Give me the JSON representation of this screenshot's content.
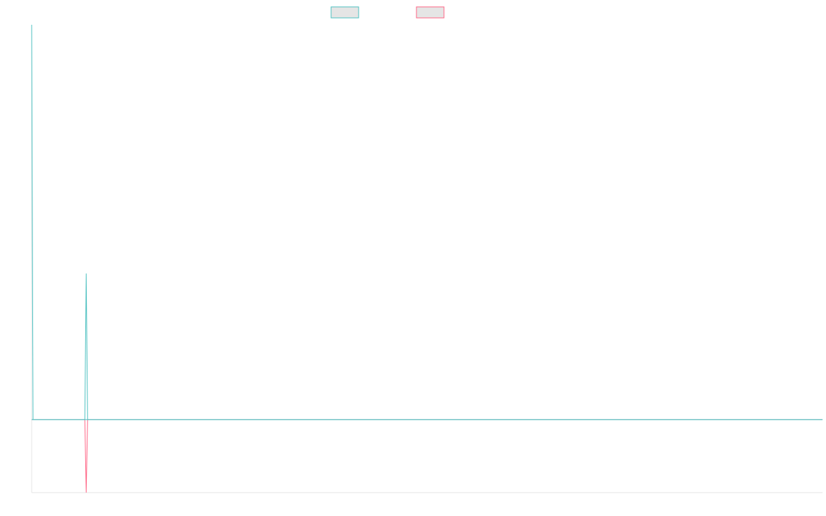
{
  "chart_data": {
    "type": "line",
    "title": "",
    "xlabel": "",
    "ylabel": "",
    "grid": false,
    "legend": {
      "placement": "top-center",
      "show_labels": false
    },
    "x": [
      0,
      1,
      2,
      3,
      4,
      5,
      6,
      7,
      8,
      9,
      10,
      11,
      12,
      13,
      14,
      15,
      16,
      17,
      18,
      19,
      20,
      21,
      22,
      23,
      24,
      25,
      26,
      27,
      28,
      29,
      30,
      31,
      32,
      33,
      34,
      35,
      36,
      37,
      38,
      39,
      40,
      41,
      42,
      43,
      44,
      45,
      46,
      47,
      48,
      49,
      50,
      51,
      52,
      53,
      54,
      55,
      56,
      57,
      58
    ],
    "xlim": [
      0,
      58
    ],
    "ylim": [
      -0.185,
      1.0
    ],
    "series": [
      {
        "key": "teal",
        "color": "#4bc0c0",
        "fill": "#e5e5e5",
        "values": [
          1.0,
          0,
          0,
          0,
          0,
          0,
          0,
          0,
          0,
          0,
          0,
          0,
          0,
          0,
          0,
          0,
          0,
          0,
          0,
          0,
          0,
          0,
          0,
          0,
          0,
          0,
          0,
          0,
          0,
          0,
          0,
          0,
          0,
          0,
          0,
          0,
          0,
          0,
          0,
          0,
          0,
          0,
          0,
          0,
          0,
          0,
          0,
          0,
          0,
          0,
          0,
          0,
          0,
          0,
          0,
          0,
          0,
          0,
          0
        ]
      },
      {
        "key": "pink",
        "color": "#ff6384",
        "fill": "#e5e5e5",
        "values": [
          0,
          0,
          0,
          0,
          -0.185,
          0,
          0,
          0,
          0,
          0,
          0,
          0,
          0,
          0,
          0,
          0,
          0,
          0,
          0,
          0,
          0,
          0,
          0,
          0,
          0,
          0,
          0,
          0,
          0,
          0,
          0,
          0,
          0,
          0,
          0,
          0,
          0,
          0,
          0,
          0,
          0,
          0,
          0,
          0,
          0,
          0,
          0,
          0,
          0,
          0,
          0,
          0,
          0,
          0,
          0,
          0,
          0,
          0,
          0
        ]
      },
      {
        "key": "teal-spike",
        "color": "#4bc0c0",
        "fill": "#e5e5e5",
        "values": [
          0,
          0,
          0,
          0,
          0.37,
          0,
          0,
          0,
          0,
          0,
          0,
          0,
          0,
          0,
          0,
          0,
          0,
          0,
          0,
          0,
          0,
          0,
          0,
          0,
          0,
          0,
          0,
          0,
          0,
          0,
          0,
          0,
          0,
          0,
          0,
          0,
          0,
          0,
          0,
          0,
          0,
          0,
          0,
          0,
          0,
          0,
          0,
          0,
          0,
          0,
          0,
          0,
          0,
          0,
          0,
          0,
          0,
          0,
          0
        ]
      }
    ]
  }
}
